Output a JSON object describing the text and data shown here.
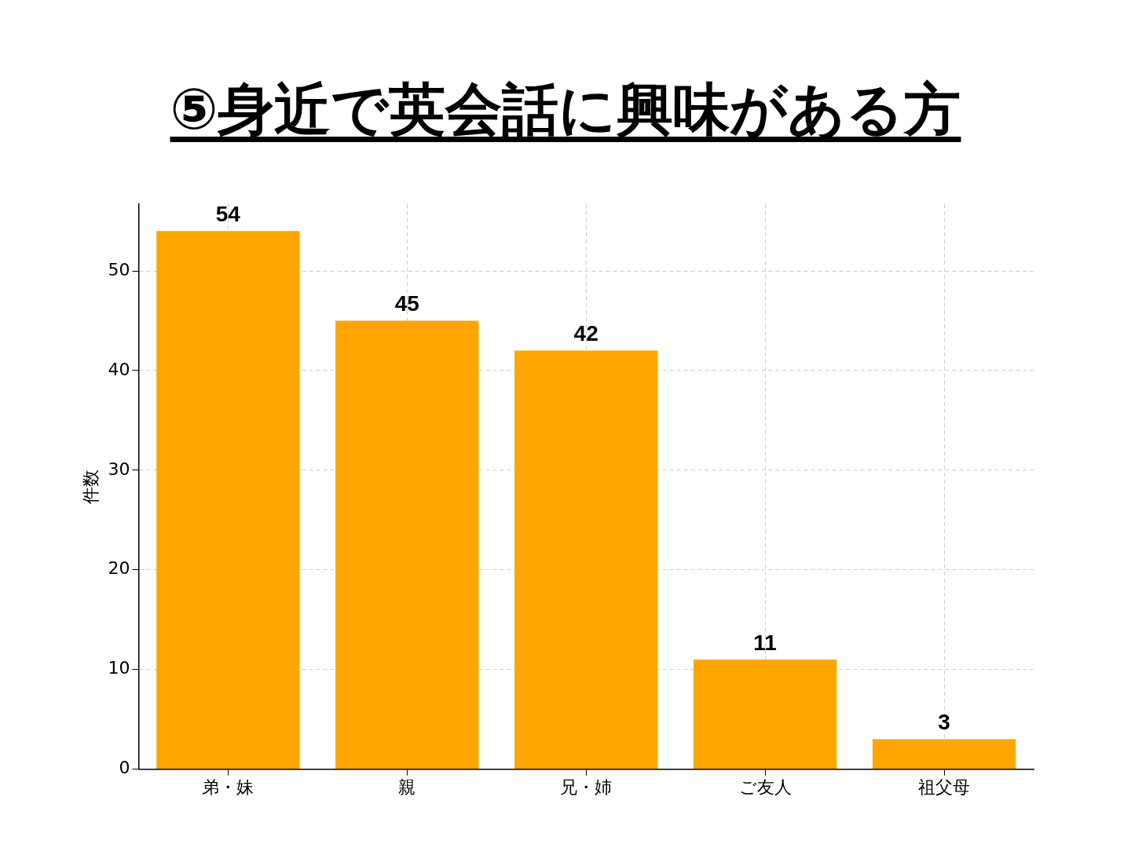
{
  "chart_data": {
    "type": "bar",
    "title": "⑤身近で英会話に興味がある方",
    "ylabel": "件数",
    "categories": [
      "弟・妹",
      "親",
      "兄・姉",
      "ご友人",
      "祖父母"
    ],
    "values": [
      54,
      45,
      42,
      11,
      3
    ],
    "color": "#ffa500",
    "ylim": [
      0,
      56.7
    ],
    "yticks": [
      0,
      10,
      20,
      30,
      40,
      50
    ],
    "grid": true,
    "data_labels": true
  }
}
